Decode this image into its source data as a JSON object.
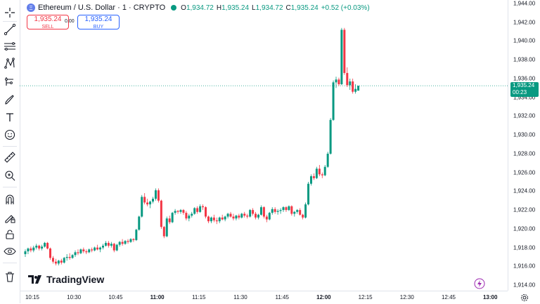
{
  "header": {
    "symbol_title": "Ethereum / U.S. Dollar · 1 · CRYPTO",
    "coin_glyph": "Ξ",
    "ohlc": {
      "o_label": "O",
      "o": "1,934.72",
      "h_label": "H",
      "h": "1,935.24",
      "l_label": "L",
      "l": "1,934.72",
      "c_label": "C",
      "c": "1,935.24",
      "change": "+0.52 (+0.03%)"
    }
  },
  "trade": {
    "sell_price": "1,935.24",
    "sell_label": "SELL",
    "spread": "0.00",
    "buy_price": "1,935.24",
    "buy_label": "BUY"
  },
  "price_axis": {
    "ticks": [
      "1,944.00",
      "1,942.00",
      "1,940.00",
      "1,938.00",
      "1,936.00",
      "1,934.00",
      "1,932.00",
      "1,930.00",
      "1,928.00",
      "1,926.00",
      "1,924.00",
      "1,922.00",
      "1,920.00",
      "1,918.00",
      "1,916.00",
      "1,914.00"
    ],
    "current_price": "1,935.24",
    "countdown": "00:23"
  },
  "time_axis": {
    "ticks": [
      {
        "label": "10:15",
        "bold": false
      },
      {
        "label": "10:30",
        "bold": false
      },
      {
        "label": "10:45",
        "bold": false
      },
      {
        "label": "11:00",
        "bold": true
      },
      {
        "label": "11:15",
        "bold": false
      },
      {
        "label": "11:30",
        "bold": false
      },
      {
        "label": "11:45",
        "bold": false
      },
      {
        "label": "12:00",
        "bold": true
      },
      {
        "label": "12:15",
        "bold": false
      },
      {
        "label": "12:30",
        "bold": false
      },
      {
        "label": "12:45",
        "bold": false
      },
      {
        "label": "13:00",
        "bold": true
      }
    ]
  },
  "branding": {
    "logo_text": "TradingView"
  },
  "colors": {
    "up": "#089981",
    "down": "#f23645",
    "accent": "#2962ff"
  },
  "toolbar": {
    "icons": [
      "crosshair-icon",
      "trend-line-icon",
      "fib-lines-icon",
      "pattern-icon",
      "forecast-icon",
      "brush-icon",
      "text-icon",
      "emoji-icon",
      "ruler-icon",
      "zoom-in-icon",
      "magnet-icon",
      "lock-drawings-icon",
      "lock-icon",
      "eye-icon",
      "trash-icon"
    ]
  },
  "chart_data": {
    "type": "candlestick",
    "ylim": [
      1914,
      1944
    ],
    "x_start": "10:12",
    "interval_minutes": 1,
    "candles": [
      [
        1917.3,
        1917.8,
        1917.0,
        1917.6
      ],
      [
        1917.6,
        1918.0,
        1917.3,
        1917.9
      ],
      [
        1917.9,
        1918.1,
        1917.5,
        1917.7
      ],
      [
        1917.7,
        1918.2,
        1917.5,
        1918.0
      ],
      [
        1918.0,
        1918.4,
        1917.8,
        1918.2
      ],
      [
        1918.2,
        1918.3,
        1917.7,
        1917.9
      ],
      [
        1917.9,
        1918.3,
        1917.7,
        1918.1
      ],
      [
        1918.1,
        1918.6,
        1918.0,
        1918.5
      ],
      [
        1918.5,
        1918.6,
        1917.8,
        1917.9
      ],
      [
        1917.9,
        1918.0,
        1916.7,
        1916.9
      ],
      [
        1916.9,
        1917.1,
        1916.3,
        1916.5
      ],
      [
        1916.5,
        1916.8,
        1916.1,
        1916.3
      ],
      [
        1916.3,
        1916.7,
        1916.1,
        1916.6
      ],
      [
        1916.6,
        1916.8,
        1916.2,
        1916.4
      ],
      [
        1916.4,
        1917.0,
        1916.3,
        1916.9
      ],
      [
        1916.9,
        1917.3,
        1916.6,
        1917.0
      ],
      [
        1917.0,
        1917.4,
        1916.7,
        1916.9
      ],
      [
        1916.9,
        1917.3,
        1916.8,
        1917.2
      ],
      [
        1917.2,
        1917.7,
        1917.0,
        1917.5
      ],
      [
        1917.5,
        1917.8,
        1917.2,
        1917.4
      ],
      [
        1917.4,
        1917.9,
        1917.3,
        1917.8
      ],
      [
        1917.8,
        1918.0,
        1917.4,
        1917.6
      ],
      [
        1917.6,
        1917.8,
        1917.3,
        1917.5
      ],
      [
        1917.5,
        1917.9,
        1917.4,
        1917.8
      ],
      [
        1917.8,
        1918.0,
        1917.5,
        1917.7
      ],
      [
        1917.7,
        1918.1,
        1917.6,
        1918.0
      ],
      [
        1918.0,
        1918.3,
        1917.7,
        1917.8
      ],
      [
        1917.8,
        1918.1,
        1917.5,
        1918.0
      ],
      [
        1918.0,
        1918.4,
        1917.8,
        1918.2
      ],
      [
        1918.2,
        1918.7,
        1918.1,
        1918.5
      ],
      [
        1918.5,
        1918.7,
        1918.0,
        1918.2
      ],
      [
        1918.2,
        1918.6,
        1918.0,
        1918.4
      ],
      [
        1918.4,
        1918.5,
        1917.5,
        1917.7
      ],
      [
        1917.7,
        1918.4,
        1917.6,
        1918.3
      ],
      [
        1918.3,
        1918.7,
        1918.1,
        1918.6
      ],
      [
        1918.6,
        1918.9,
        1918.2,
        1918.4
      ],
      [
        1918.4,
        1918.8,
        1918.3,
        1918.7
      ],
      [
        1918.7,
        1918.9,
        1918.4,
        1918.6
      ],
      [
        1918.6,
        1919.0,
        1918.5,
        1918.9
      ],
      [
        1918.9,
        1919.0,
        1918.6,
        1918.8
      ],
      [
        1918.8,
        1920.0,
        1918.7,
        1919.9
      ],
      [
        1919.9,
        1921.4,
        1919.8,
        1921.3
      ],
      [
        1921.3,
        1923.6,
        1921.2,
        1923.4
      ],
      [
        1923.4,
        1923.8,
        1922.6,
        1922.8
      ],
      [
        1922.8,
        1923.2,
        1922.4,
        1922.6
      ],
      [
        1922.6,
        1923.0,
        1922.2,
        1922.9
      ],
      [
        1922.9,
        1923.4,
        1922.7,
        1923.2
      ],
      [
        1923.2,
        1924.3,
        1923.0,
        1924.1
      ],
      [
        1924.1,
        1924.3,
        1922.8,
        1923.0
      ],
      [
        1923.0,
        1923.1,
        1920.0,
        1920.2
      ],
      [
        1920.2,
        1920.3,
        1919.0,
        1919.2
      ],
      [
        1919.2,
        1921.3,
        1919.1,
        1921.1
      ],
      [
        1921.1,
        1921.4,
        1920.5,
        1920.7
      ],
      [
        1920.7,
        1921.8,
        1920.6,
        1921.7
      ],
      [
        1921.7,
        1922.1,
        1921.5,
        1921.9
      ],
      [
        1921.9,
        1922.0,
        1921.6,
        1921.8
      ],
      [
        1921.8,
        1922.1,
        1921.6,
        1922.0
      ],
      [
        1922.0,
        1922.1,
        1921.5,
        1921.7
      ],
      [
        1921.7,
        1921.9,
        1920.9,
        1921.1
      ],
      [
        1921.1,
        1921.6,
        1920.8,
        1921.4
      ],
      [
        1921.4,
        1921.8,
        1921.2,
        1921.6
      ],
      [
        1921.6,
        1922.3,
        1921.5,
        1922.2
      ],
      [
        1922.2,
        1922.4,
        1921.6,
        1921.8
      ],
      [
        1921.8,
        1922.6,
        1921.7,
        1922.4
      ],
      [
        1922.4,
        1922.6,
        1922.0,
        1922.3
      ],
      [
        1922.3,
        1922.4,
        1921.1,
        1921.3
      ],
      [
        1921.3,
        1921.4,
        1920.6,
        1920.8
      ],
      [
        1920.8,
        1921.3,
        1920.6,
        1921.2
      ],
      [
        1921.2,
        1921.5,
        1920.7,
        1920.9
      ],
      [
        1920.9,
        1921.2,
        1920.5,
        1920.8
      ],
      [
        1920.8,
        1921.3,
        1920.6,
        1921.2
      ],
      [
        1921.2,
        1921.5,
        1920.9,
        1921.0
      ],
      [
        1921.0,
        1921.4,
        1920.8,
        1921.3
      ],
      [
        1921.3,
        1921.7,
        1921.1,
        1921.6
      ],
      [
        1921.6,
        1921.8,
        1921.2,
        1921.3
      ],
      [
        1921.3,
        1921.6,
        1920.9,
        1921.1
      ],
      [
        1921.1,
        1921.5,
        1920.9,
        1921.4
      ],
      [
        1921.4,
        1921.6,
        1921.0,
        1921.2
      ],
      [
        1921.2,
        1921.7,
        1921.1,
        1921.6
      ],
      [
        1921.6,
        1921.8,
        1921.2,
        1921.4
      ],
      [
        1921.4,
        1921.6,
        1921.1,
        1921.3
      ],
      [
        1921.3,
        1922.1,
        1921.2,
        1922.0
      ],
      [
        1922.0,
        1922.2,
        1921.4,
        1921.6
      ],
      [
        1921.6,
        1921.8,
        1921.0,
        1921.2
      ],
      [
        1921.2,
        1921.6,
        1921.0,
        1921.5
      ],
      [
        1921.5,
        1922.5,
        1921.4,
        1922.3
      ],
      [
        1922.3,
        1922.4,
        1921.1,
        1921.3
      ],
      [
        1921.3,
        1921.5,
        1920.7,
        1921.0
      ],
      [
        1921.0,
        1921.8,
        1920.9,
        1921.7
      ],
      [
        1921.7,
        1922.3,
        1921.5,
        1922.1
      ],
      [
        1922.1,
        1922.3,
        1921.6,
        1921.8
      ],
      [
        1921.8,
        1922.1,
        1921.5,
        1921.9
      ],
      [
        1921.9,
        1922.2,
        1921.6,
        1922.0
      ],
      [
        1922.0,
        1922.4,
        1921.8,
        1922.3
      ],
      [
        1922.3,
        1922.4,
        1921.8,
        1922.0
      ],
      [
        1922.0,
        1922.5,
        1921.9,
        1922.4
      ],
      [
        1922.4,
        1922.5,
        1921.4,
        1921.6
      ],
      [
        1921.6,
        1921.9,
        1921.3,
        1921.8
      ],
      [
        1921.8,
        1922.1,
        1921.6,
        1922.0
      ],
      [
        1922.0,
        1922.2,
        1921.4,
        1921.5
      ],
      [
        1921.5,
        1921.6,
        1921.0,
        1921.2
      ],
      [
        1921.2,
        1922.8,
        1921.1,
        1922.6
      ],
      [
        1922.6,
        1925.0,
        1922.5,
        1924.8
      ],
      [
        1924.8,
        1925.8,
        1924.6,
        1925.6
      ],
      [
        1925.6,
        1925.9,
        1925.2,
        1925.4
      ],
      [
        1925.4,
        1926.6,
        1925.3,
        1926.4
      ],
      [
        1926.4,
        1926.8,
        1925.6,
        1925.8
      ],
      [
        1925.8,
        1926.0,
        1925.4,
        1925.7
      ],
      [
        1925.7,
        1926.8,
        1925.6,
        1926.6
      ],
      [
        1926.6,
        1928.2,
        1926.5,
        1928.0
      ],
      [
        1928.0,
        1931.8,
        1927.9,
        1931.6
      ],
      [
        1931.6,
        1935.8,
        1931.5,
        1935.6
      ],
      [
        1935.6,
        1936.2,
        1935.0,
        1935.9
      ],
      [
        1935.9,
        1936.1,
        1935.2,
        1935.4
      ],
      [
        1935.4,
        1941.4,
        1935.3,
        1941.2
      ],
      [
        1941.2,
        1941.4,
        1936.4,
        1936.6
      ],
      [
        1936.6,
        1937.2,
        1935.1,
        1935.3
      ],
      [
        1935.3,
        1936.0,
        1934.8,
        1935.7
      ],
      [
        1935.7,
        1936.0,
        1934.4,
        1934.6
      ],
      [
        1934.6,
        1935.4,
        1934.4,
        1934.9
      ],
      [
        1934.72,
        1935.24,
        1934.72,
        1935.24
      ]
    ]
  }
}
